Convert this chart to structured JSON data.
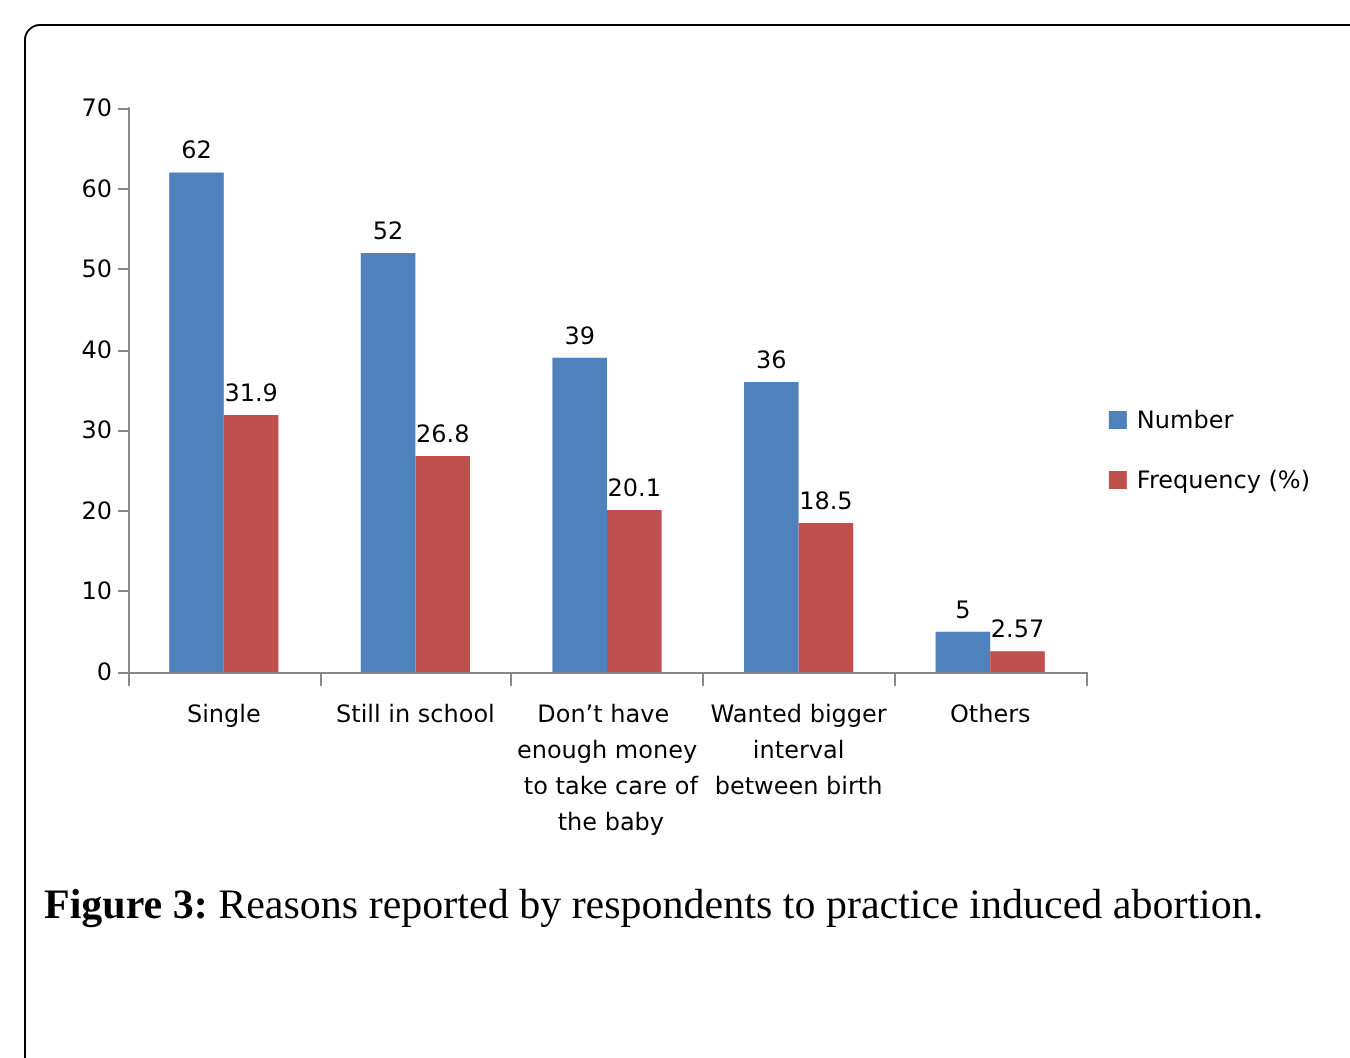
{
  "chart_data": {
    "type": "bar",
    "categories": [
      "Single",
      "Still in school",
      "Don’t have enough money to take care of the baby",
      "Wanted bigger interval between birth",
      "Others"
    ],
    "series": [
      {
        "name": "Number",
        "color": "#4f81bd",
        "values": [
          62,
          52,
          39,
          36,
          5
        ]
      },
      {
        "name": "Frequency (%)",
        "color": "#c0504d",
        "values": [
          31.9,
          26.8,
          20.1,
          18.5,
          2.57
        ]
      }
    ],
    "ylim": [
      0,
      70
    ],
    "yticks": [
      0,
      10,
      20,
      30,
      40,
      50,
      60,
      70
    ],
    "grid": false,
    "legend": "right",
    "data_labels": true,
    "annotations": [
      "Figure 3: Reasons reported by respondents to practice induced abortion."
    ]
  }
}
